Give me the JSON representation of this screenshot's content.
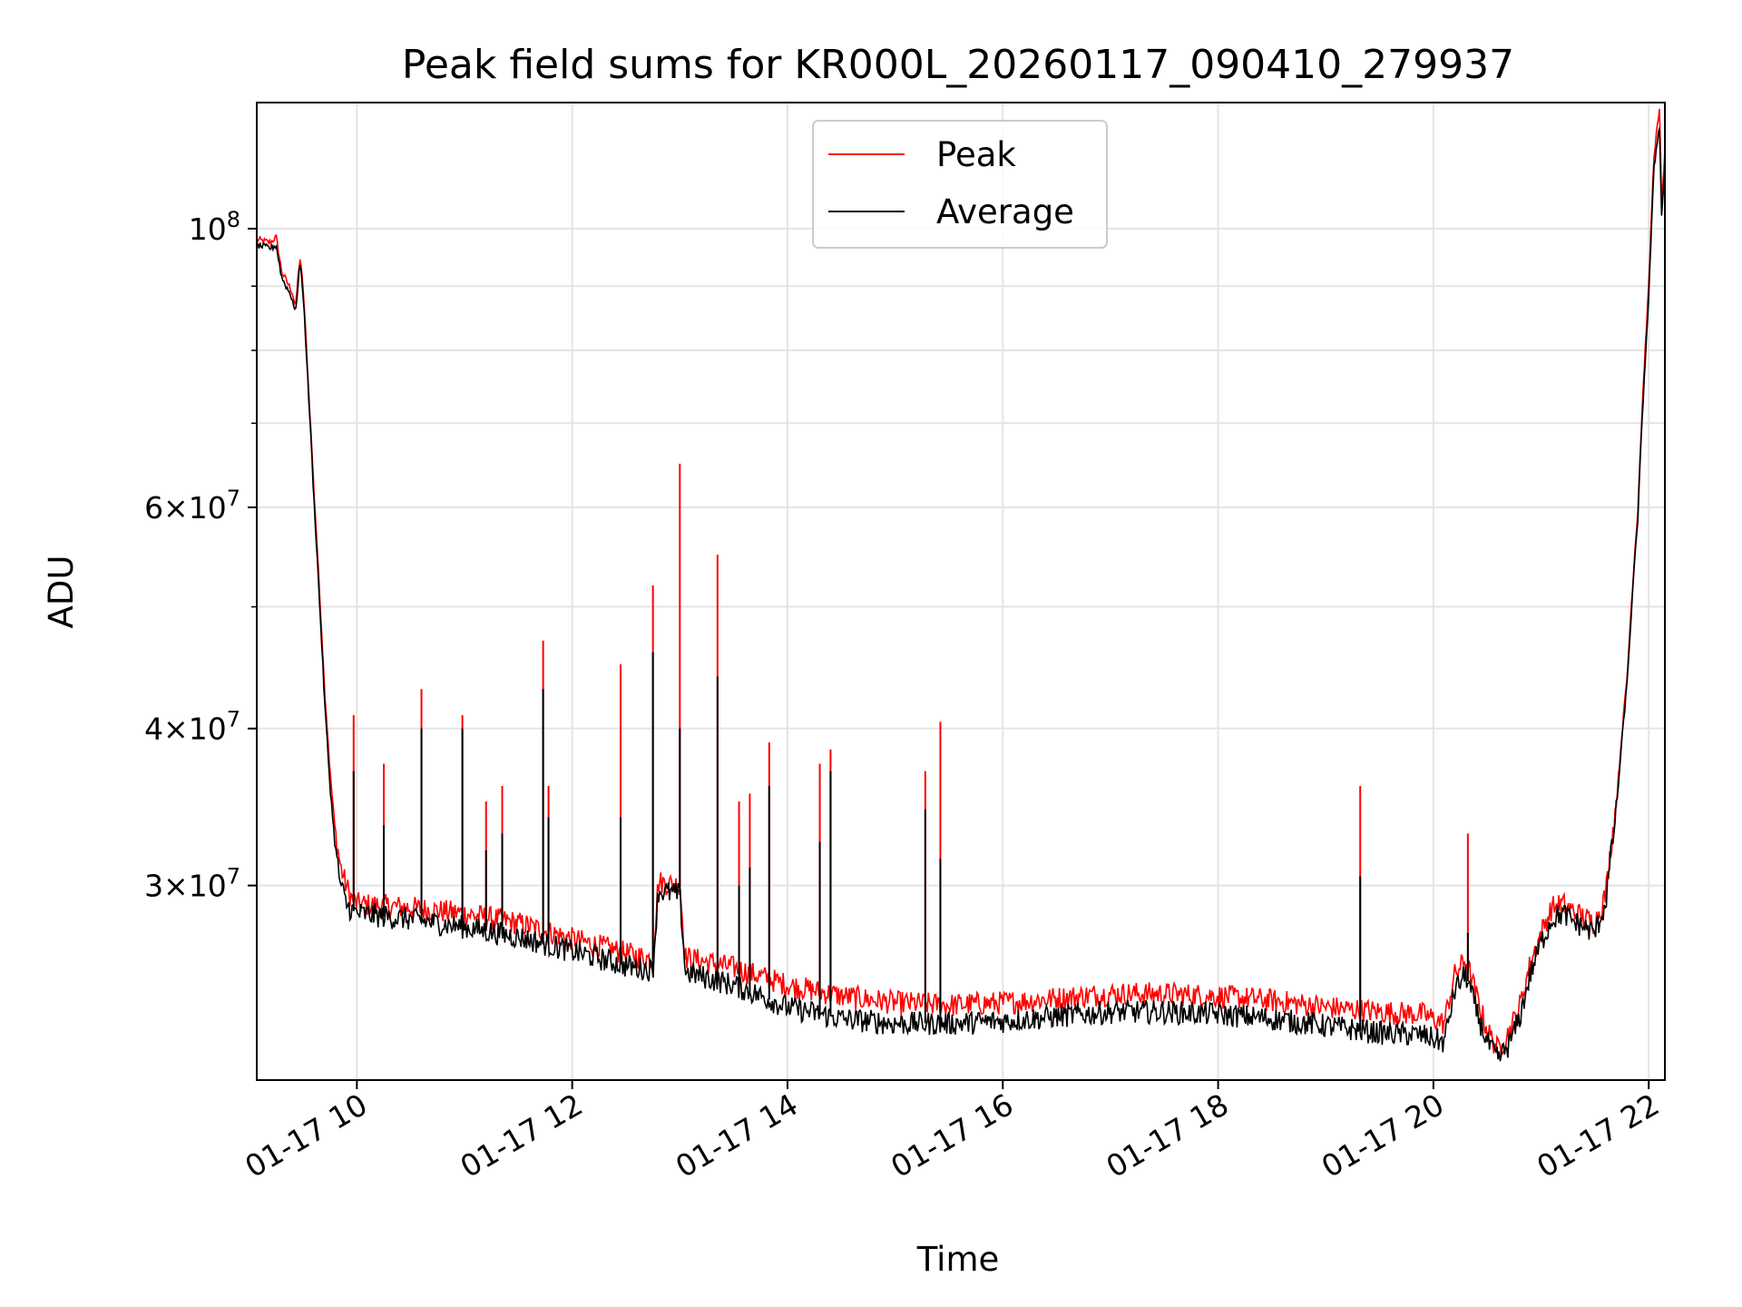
{
  "chart_data": {
    "type": "line",
    "title": "Peak field sums for KR000L_20260117_090410_279937",
    "xlabel": "Time",
    "ylabel": "ADU",
    "yscale": "log",
    "ylim": [
      21000000,
      126000000
    ],
    "xlim_hours": [
      9.07,
      22.15
    ],
    "grid": true,
    "legend_position": "upper-center",
    "x_ticks": [
      {
        "hour": 10,
        "label": "01-17 10"
      },
      {
        "hour": 12,
        "label": "01-17 12"
      },
      {
        "hour": 14,
        "label": "01-17 14"
      },
      {
        "hour": 16,
        "label": "01-17 16"
      },
      {
        "hour": 18,
        "label": "01-17 18"
      },
      {
        "hour": 20,
        "label": "01-17 20"
      },
      {
        "hour": 22,
        "label": "01-17 22"
      }
    ],
    "y_ticks": [
      {
        "value": 100000000,
        "base": "10",
        "exp": "8"
      },
      {
        "value": 60000000,
        "mant": "6",
        "base": "10",
        "exp": "7"
      },
      {
        "value": 40000000,
        "mant": "4",
        "base": "10",
        "exp": "7"
      },
      {
        "value": 30000000,
        "mant": "3",
        "base": "10",
        "exp": "7"
      }
    ],
    "times_symbol": "×",
    "y_minor_grid": [
      50000000,
      70000000,
      80000000,
      90000000
    ],
    "series": [
      {
        "name": "Peak",
        "color": "#ff0000",
        "points": [
          [
            9.07,
            98000000
          ],
          [
            9.2,
            97500000
          ],
          [
            9.25,
            98500000
          ],
          [
            9.3,
            92500000
          ],
          [
            9.4,
            89000000
          ],
          [
            9.43,
            86500000
          ],
          [
            9.47,
            95000000
          ],
          [
            9.5,
            90000000
          ],
          [
            9.55,
            75000000
          ],
          [
            9.6,
            62000000
          ],
          [
            9.65,
            52000000
          ],
          [
            9.7,
            43000000
          ],
          [
            9.75,
            37000000
          ],
          [
            9.8,
            33000000
          ],
          [
            9.85,
            31000000
          ],
          [
            9.9,
            30000000
          ],
          [
            9.95,
            29300000
          ],
          [
            10.0,
            29000000
          ],
          [
            10.5,
            28800000
          ],
          [
            11.0,
            28500000
          ],
          [
            11.5,
            28000000
          ],
          [
            12.0,
            27200000
          ],
          [
            12.5,
            26500000
          ],
          [
            12.75,
            26200000
          ],
          [
            12.8,
            30200000
          ],
          [
            13.0,
            30000000
          ],
          [
            13.05,
            26300000
          ],
          [
            13.5,
            25800000
          ],
          [
            14.0,
            25000000
          ],
          [
            14.5,
            24500000
          ],
          [
            15.0,
            24200000
          ],
          [
            15.5,
            24100000
          ],
          [
            16.0,
            24200000
          ],
          [
            16.5,
            24400000
          ],
          [
            17.0,
            24600000
          ],
          [
            17.5,
            24600000
          ],
          [
            18.0,
            24500000
          ],
          [
            18.5,
            24300000
          ],
          [
            19.0,
            24000000
          ],
          [
            19.5,
            23800000
          ],
          [
            19.9,
            23700000
          ],
          [
            20.1,
            23300000
          ],
          [
            20.2,
            25500000
          ],
          [
            20.3,
            26200000
          ],
          [
            20.4,
            24500000
          ],
          [
            20.5,
            23000000
          ],
          [
            20.6,
            22200000
          ],
          [
            20.7,
            22900000
          ],
          [
            20.8,
            24000000
          ],
          [
            20.9,
            26000000
          ],
          [
            21.0,
            27500000
          ],
          [
            21.1,
            28800000
          ],
          [
            21.2,
            29000000
          ],
          [
            21.3,
            28600000
          ],
          [
            21.5,
            28000000
          ],
          [
            21.6,
            29500000
          ],
          [
            21.7,
            35000000
          ],
          [
            21.8,
            44000000
          ],
          [
            21.9,
            60000000
          ],
          [
            22.0,
            90000000
          ],
          [
            22.05,
            115000000
          ],
          [
            22.1,
            124000000
          ],
          [
            22.12,
            105000000
          ],
          [
            22.15,
            115000000
          ]
        ],
        "spikes": [
          [
            9.97,
            41000000
          ],
          [
            10.25,
            37500000
          ],
          [
            10.6,
            43000000
          ],
          [
            10.98,
            41000000
          ],
          [
            11.2,
            35000000
          ],
          [
            11.35,
            36000000
          ],
          [
            11.73,
            47000000
          ],
          [
            11.78,
            36000000
          ],
          [
            12.45,
            45000000
          ],
          [
            12.75,
            52000000
          ],
          [
            13.0,
            65000000
          ],
          [
            13.35,
            55000000
          ],
          [
            13.55,
            35000000
          ],
          [
            13.65,
            35500000
          ],
          [
            13.83,
            39000000
          ],
          [
            14.3,
            37500000
          ],
          [
            14.4,
            38500000
          ],
          [
            15.28,
            37000000
          ],
          [
            15.42,
            40500000
          ],
          [
            19.32,
            36000000
          ],
          [
            20.32,
            33000000
          ]
        ]
      },
      {
        "name": "Average",
        "color": "#000000",
        "points": [
          [
            9.07,
            97000000
          ],
          [
            9.2,
            96500000
          ],
          [
            9.25,
            97000000
          ],
          [
            9.3,
            91500000
          ],
          [
            9.4,
            88000000
          ],
          [
            9.43,
            85500000
          ],
          [
            9.47,
            94000000
          ],
          [
            9.5,
            89000000
          ],
          [
            9.55,
            74000000
          ],
          [
            9.6,
            61000000
          ],
          [
            9.65,
            51000000
          ],
          [
            9.7,
            42000000
          ],
          [
            9.75,
            36000000
          ],
          [
            9.8,
            32000000
          ],
          [
            9.85,
            30000000
          ],
          [
            9.9,
            29000000
          ],
          [
            9.95,
            28700000
          ],
          [
            10.0,
            28500000
          ],
          [
            10.5,
            28200000
          ],
          [
            11.0,
            27800000
          ],
          [
            11.5,
            27300000
          ],
          [
            12.0,
            26600000
          ],
          [
            12.5,
            25900000
          ],
          [
            12.75,
            25700000
          ],
          [
            12.8,
            29700000
          ],
          [
            13.0,
            29500000
          ],
          [
            13.05,
            25600000
          ],
          [
            13.5,
            25000000
          ],
          [
            14.0,
            24000000
          ],
          [
            14.5,
            23500000
          ],
          [
            15.0,
            23300000
          ],
          [
            15.5,
            23300000
          ],
          [
            16.0,
            23400000
          ],
          [
            16.5,
            23600000
          ],
          [
            17.0,
            23800000
          ],
          [
            17.5,
            23800000
          ],
          [
            18.0,
            23700000
          ],
          [
            18.5,
            23500000
          ],
          [
            19.0,
            23200000
          ],
          [
            19.5,
            22900000
          ],
          [
            19.9,
            22800000
          ],
          [
            20.1,
            22500000
          ],
          [
            20.2,
            24800000
          ],
          [
            20.3,
            25500000
          ],
          [
            20.4,
            23800000
          ],
          [
            20.5,
            22500000
          ],
          [
            20.6,
            21800000
          ],
          [
            20.7,
            22400000
          ],
          [
            20.8,
            23500000
          ],
          [
            20.9,
            25500000
          ],
          [
            21.0,
            27000000
          ],
          [
            21.1,
            28200000
          ],
          [
            21.2,
            28500000
          ],
          [
            21.3,
            28100000
          ],
          [
            21.5,
            27500000
          ],
          [
            21.6,
            29000000
          ],
          [
            21.7,
            34500000
          ],
          [
            21.8,
            43500000
          ],
          [
            21.9,
            59000000
          ],
          [
            22.0,
            88000000
          ],
          [
            22.05,
            112000000
          ],
          [
            22.1,
            121000000
          ],
          [
            22.12,
            102000000
          ],
          [
            22.15,
            112000000
          ]
        ],
        "spikes": [
          [
            9.97,
            37000000
          ],
          [
            10.25,
            33500000
          ],
          [
            10.6,
            40000000
          ],
          [
            10.98,
            40000000
          ],
          [
            11.2,
            32000000
          ],
          [
            11.35,
            33000000
          ],
          [
            11.73,
            43000000
          ],
          [
            11.78,
            34000000
          ],
          [
            12.45,
            34000000
          ],
          [
            12.75,
            46000000
          ],
          [
            13.0,
            40000000
          ],
          [
            13.35,
            44000000
          ],
          [
            13.55,
            30000000
          ],
          [
            13.65,
            31000000
          ],
          [
            13.83,
            36000000
          ],
          [
            14.3,
            32500000
          ],
          [
            14.4,
            37000000
          ],
          [
            15.28,
            34500000
          ],
          [
            15.42,
            31500000
          ],
          [
            19.32,
            30500000
          ],
          [
            20.32,
            27500000
          ]
        ]
      }
    ]
  }
}
